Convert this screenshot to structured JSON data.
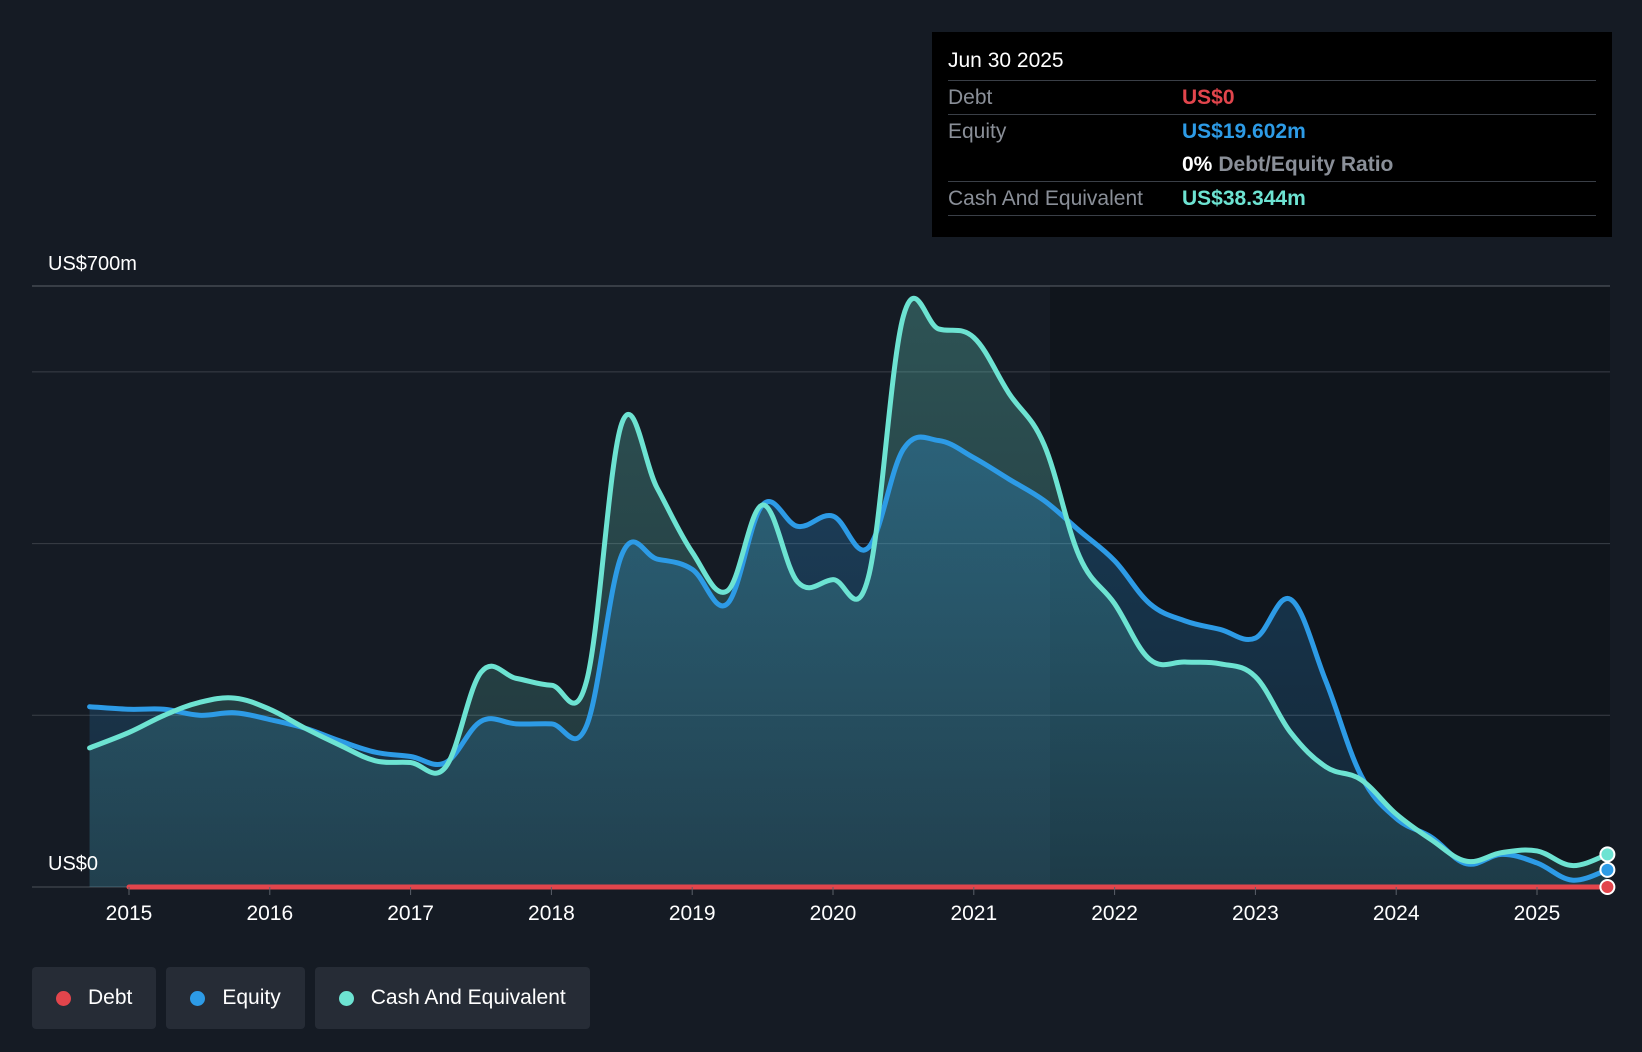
{
  "tooltip": {
    "date": "Jun 30 2025",
    "rows": [
      {
        "label": "Debt",
        "value": "US$0"
      },
      {
        "label": "Equity",
        "value": "US$19.602m"
      },
      {
        "ratio_pct": "0%",
        "ratio_text": "Debt/Equity Ratio"
      },
      {
        "label": "Cash And Equivalent",
        "value": "US$38.344m"
      }
    ]
  },
  "legend": [
    {
      "label": "Debt"
    },
    {
      "label": "Equity"
    },
    {
      "label": "Cash And Equivalent"
    }
  ],
  "colors": {
    "background": "#151b24",
    "plot_bg": "#10151c",
    "debt": "#e2454c",
    "equity": "#2d9be6",
    "cash": "#6de3d2",
    "grid": "#3a3f47"
  },
  "chart_data": {
    "type": "area",
    "title": "",
    "xlabel": "",
    "ylabel": "",
    "y_unit": "US$m",
    "ylim": [
      0,
      700
    ],
    "xlim": [
      2014.72,
      2025.5
    ],
    "y_tick_labels": [
      "US$0",
      "US$700m"
    ],
    "x_tick_labels": [
      "2015",
      "2016",
      "2017",
      "2018",
      "2019",
      "2020",
      "2021",
      "2022",
      "2023",
      "2024",
      "2025"
    ],
    "x_ticks": [
      2015,
      2016,
      2017,
      2018,
      2019,
      2020,
      2021,
      2022,
      2023,
      2024,
      2025
    ],
    "gridlines": [
      0,
      200,
      400,
      600,
      700
    ],
    "series": [
      {
        "name": "Debt",
        "x": [
          2015.0,
          2025.5
        ],
        "values": [
          0,
          0
        ]
      },
      {
        "name": "Equity",
        "x": [
          2014.72,
          2015.0,
          2015.25,
          2015.5,
          2015.75,
          2016.0,
          2016.25,
          2016.5,
          2016.75,
          2017.0,
          2017.25,
          2017.5,
          2017.75,
          2018.0,
          2018.25,
          2018.5,
          2018.75,
          2019.0,
          2019.25,
          2019.5,
          2019.75,
          2020.0,
          2020.25,
          2020.5,
          2020.75,
          2021.0,
          2021.25,
          2021.5,
          2021.75,
          2022.0,
          2022.25,
          2022.5,
          2022.75,
          2023.0,
          2023.25,
          2023.5,
          2023.75,
          2024.0,
          2024.25,
          2024.5,
          2024.75,
          2025.0,
          2025.25,
          2025.5
        ],
        "values": [
          210,
          207,
          207,
          200,
          203,
          195,
          185,
          170,
          157,
          152,
          145,
          193,
          190,
          190,
          188,
          387,
          382,
          370,
          330,
          445,
          420,
          432,
          395,
          510,
          520,
          500,
          475,
          450,
          415,
          380,
          330,
          310,
          300,
          290,
          335,
          240,
          130,
          80,
          58,
          27,
          38,
          28,
          8,
          20
        ]
      },
      {
        "name": "Cash And Equivalent",
        "x": [
          2014.72,
          2015.0,
          2015.25,
          2015.5,
          2015.75,
          2016.0,
          2016.25,
          2016.5,
          2016.75,
          2017.0,
          2017.25,
          2017.5,
          2017.75,
          2018.0,
          2018.25,
          2018.5,
          2018.75,
          2019.0,
          2019.25,
          2019.5,
          2019.75,
          2020.0,
          2020.25,
          2020.5,
          2020.75,
          2021.0,
          2021.25,
          2021.5,
          2021.75,
          2022.0,
          2022.25,
          2022.5,
          2022.75,
          2023.0,
          2023.25,
          2023.5,
          2023.75,
          2024.0,
          2024.25,
          2024.5,
          2024.75,
          2025.0,
          2025.25,
          2025.5
        ],
        "values": [
          162,
          180,
          200,
          215,
          220,
          207,
          185,
          165,
          147,
          145,
          140,
          250,
          243,
          235,
          240,
          540,
          465,
          390,
          345,
          445,
          355,
          358,
          360,
          665,
          650,
          640,
          575,
          515,
          385,
          330,
          265,
          262,
          260,
          245,
          180,
          140,
          125,
          85,
          55,
          30,
          40,
          42,
          25,
          38
        ]
      }
    ],
    "tooltip_date": "Jun 30 2025",
    "debt_to_equity_ratio": "0%"
  }
}
